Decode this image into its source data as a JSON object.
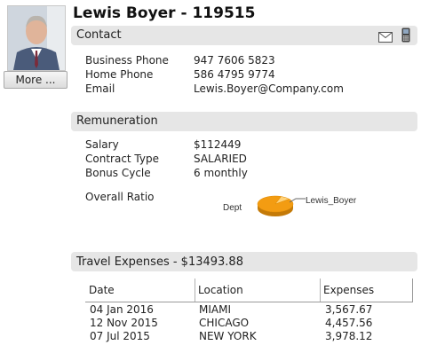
{
  "header": {
    "name": "Lewis Boyer - 119515",
    "more_label": "More ..."
  },
  "contact": {
    "title": "Contact",
    "icons": [
      "mail-icon",
      "mobile-phone-icon"
    ],
    "rows": [
      {
        "label": "Business Phone",
        "value": "947 7606 5823"
      },
      {
        "label": "Home Phone",
        "value": "586 4795 9774"
      },
      {
        "label": "Email",
        "value": "Lewis.Boyer@Company.com"
      }
    ]
  },
  "remuneration": {
    "title": "Remuneration",
    "rows": [
      {
        "label": "Salary",
        "value": "$112449"
      },
      {
        "label": "Contract Type",
        "value": "SALARIED"
      },
      {
        "label": "Bonus Cycle",
        "value": "6 monthly"
      }
    ],
    "ratio_label": "Overall Ratio"
  },
  "chart_data": {
    "type": "pie",
    "categories": [
      "Dept",
      "Lewis_Boyer"
    ],
    "values": [
      91,
      9
    ],
    "colors": [
      "#f39c12",
      "#ffd27a"
    ]
  },
  "travel": {
    "title": "Travel Expenses - $13493.88",
    "columns": [
      "Date",
      "Location",
      "Expenses"
    ],
    "rows": [
      {
        "date": "04 Jan 2016",
        "location": "MIAMI",
        "expense": "3,567.67"
      },
      {
        "date": "12 Nov 2015",
        "location": "CHICAGO",
        "expense": "4,457.56"
      },
      {
        "date": "07 Jul 2015",
        "location": "NEW YORK",
        "expense": "3,978.12"
      }
    ]
  }
}
